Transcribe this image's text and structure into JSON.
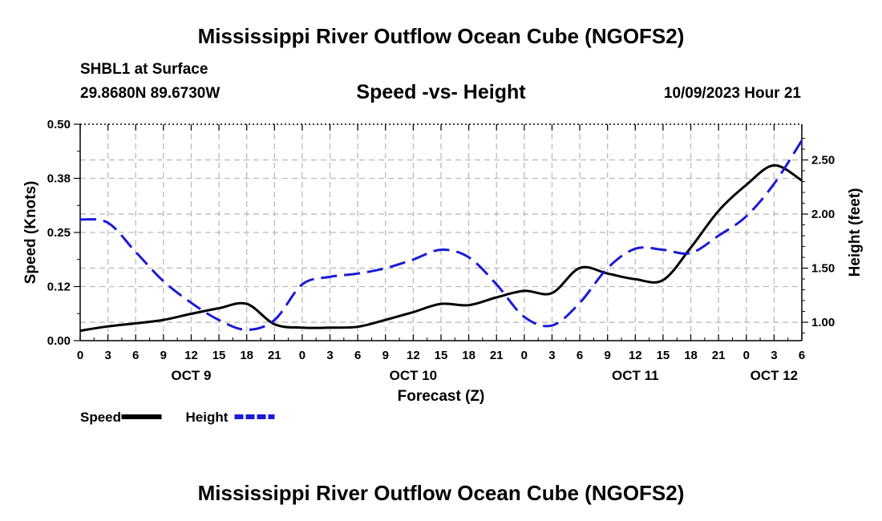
{
  "page": {
    "title_top": "Mississippi River Outflow Ocean Cube (NGOFS2)",
    "title_bottom": "Mississippi River Outflow Ocean Cube (NGOFS2)",
    "station": "SHBL1 at Surface",
    "coords": "29.8680N  89.6730W",
    "subtitle": "Speed -vs- Height",
    "timestamp": "10/09/2023 Hour 21"
  },
  "chart_data": {
    "type": "line",
    "title": "Speed -vs- Height",
    "xlabel": "Forecast (Z)",
    "ylabel": "Speed (Knots)",
    "y2label": "Height (feet)",
    "x_range": [
      0,
      78
    ],
    "ylim": [
      0,
      0.5
    ],
    "y2lim": [
      0.83,
      2.83
    ],
    "x_ticks": [
      0,
      3,
      6,
      9,
      12,
      15,
      18,
      21,
      24,
      27,
      30,
      33,
      36,
      39,
      42,
      45,
      48,
      51,
      54,
      57,
      60,
      63,
      66,
      69,
      72,
      75,
      78
    ],
    "x_tick_labels": [
      "0",
      "3",
      "6",
      "9",
      "12",
      "15",
      "18",
      "21",
      "0",
      "3",
      "6",
      "9",
      "12",
      "15",
      "18",
      "21",
      "0",
      "3",
      "6",
      "9",
      "12",
      "15",
      "18",
      "21",
      "0",
      "3",
      "6"
    ],
    "y_ticks": [
      0,
      0.125,
      0.25,
      0.375,
      0.5
    ],
    "y_tick_labels": [
      "0.00",
      "0.12",
      "0.25",
      "0.38",
      "0.50"
    ],
    "y2_ticks": [
      1.0,
      1.5,
      2.0,
      2.5
    ],
    "y2_tick_labels": [
      "1.00",
      "1.50",
      "2.00",
      "2.50"
    ],
    "day_labels": [
      {
        "x": 12,
        "label": "OCT 9"
      },
      {
        "x": 36,
        "label": "OCT 10"
      },
      {
        "x": 60,
        "label": "OCT 11"
      },
      {
        "x": 75,
        "label": "OCT 12"
      }
    ],
    "grid": true,
    "series": [
      {
        "name": "Speed",
        "axis": "left",
        "color": "#000000",
        "dash": "solid",
        "x": [
          0,
          3,
          6,
          9,
          12,
          15,
          18,
          21,
          24,
          27,
          30,
          33,
          36,
          39,
          42,
          45,
          48,
          51,
          54,
          57,
          60,
          63,
          66,
          69,
          72,
          75,
          78
        ],
        "values": [
          0.023,
          0.033,
          0.04,
          0.048,
          0.062,
          0.075,
          0.085,
          0.038,
          0.03,
          0.03,
          0.032,
          0.048,
          0.066,
          0.085,
          0.082,
          0.1,
          0.115,
          0.11,
          0.168,
          0.155,
          0.142,
          0.14,
          0.215,
          0.3,
          0.36,
          0.405,
          0.37
        ]
      },
      {
        "name": "Height",
        "axis": "right",
        "color": "#1a1ad6",
        "dash": "dashed",
        "x": [
          0,
          3,
          6,
          9,
          12,
          15,
          18,
          21,
          24,
          27,
          30,
          33,
          36,
          39,
          42,
          45,
          48,
          51,
          54,
          57,
          60,
          63,
          66,
          69,
          72,
          75,
          78
        ],
        "values": [
          1.95,
          1.92,
          1.65,
          1.38,
          1.18,
          1.02,
          0.93,
          1.02,
          1.35,
          1.42,
          1.45,
          1.5,
          1.58,
          1.67,
          1.6,
          1.35,
          1.05,
          0.97,
          1.18,
          1.5,
          1.68,
          1.67,
          1.64,
          1.8,
          1.98,
          2.28,
          2.68
        ]
      }
    ],
    "legend": [
      {
        "label": "Speed",
        "color": "#000000",
        "dash": "solid"
      },
      {
        "label": "Height",
        "color": "#1a1ad6",
        "dash": "dashed"
      }
    ],
    "legend_position": "bottom-left"
  }
}
